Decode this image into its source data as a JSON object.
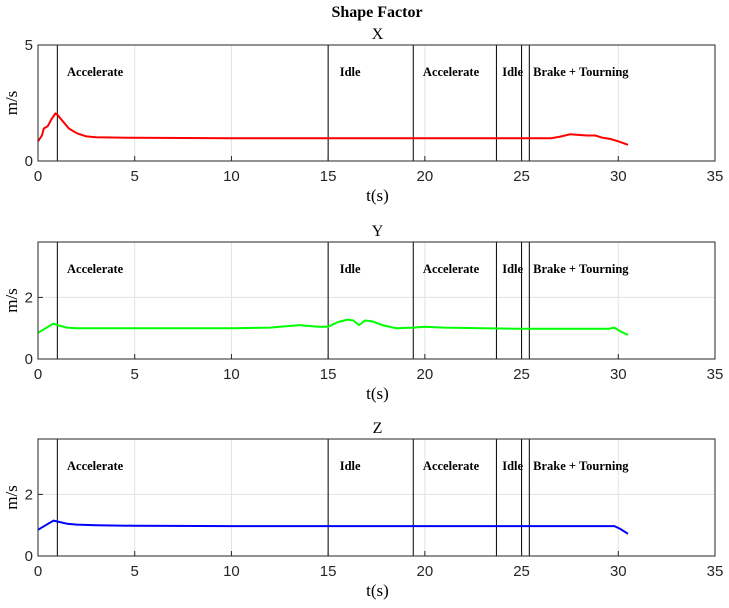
{
  "figure_title": "Shape Factor",
  "chart_data": [
    {
      "type": "line",
      "title": "X",
      "xlabel": "t(s)",
      "ylabel": "m/s",
      "xlim": [
        0,
        35
      ],
      "ylim": [
        0,
        5
      ],
      "xticks": [
        0,
        5,
        10,
        15,
        20,
        25,
        30,
        35
      ],
      "yticks": [
        0,
        5
      ],
      "grid": true,
      "series": [
        {
          "color": "#ff0000",
          "x": [
            0,
            0.2,
            0.3,
            0.5,
            0.7,
            0.9,
            1.0,
            1.3,
            1.6,
            2.0,
            2.5,
            3.0,
            5,
            10,
            15,
            20,
            25,
            26.5,
            27.0,
            27.5,
            28.0,
            28.4,
            28.8,
            29.2,
            29.6,
            30.0,
            30.5
          ],
          "y": [
            0.85,
            1.1,
            1.4,
            1.5,
            1.8,
            2.05,
            2.0,
            1.7,
            1.4,
            1.2,
            1.06,
            1.02,
            1.0,
            0.98,
            0.98,
            0.98,
            0.98,
            0.98,
            1.05,
            1.15,
            1.12,
            1.1,
            1.1,
            1.0,
            0.95,
            0.85,
            0.7
          ]
        }
      ],
      "phase_lines": [
        1.0,
        15.0,
        19.4,
        23.7,
        25.0,
        25.4
      ],
      "annotations": [
        {
          "text": "Accelerate",
          "x": 1.5
        },
        {
          "text": "Idle",
          "x": 15.6
        },
        {
          "text": "Accelerate",
          "x": 19.9
        },
        {
          "text": "Idle",
          "x": 24.0
        },
        {
          "text": "Brake + Tourning",
          "x": 25.6
        }
      ]
    },
    {
      "type": "line",
      "title": "Y",
      "xlabel": "t(s)",
      "ylabel": "m/s",
      "xlim": [
        0,
        35
      ],
      "ylim": [
        0,
        3.8
      ],
      "xticks": [
        0,
        5,
        10,
        15,
        20,
        25,
        30,
        35
      ],
      "yticks": [
        0,
        2
      ],
      "grid": true,
      "series": [
        {
          "color": "#00ff00",
          "x": [
            0,
            0.4,
            0.8,
            1.0,
            1.5,
            2.0,
            3.0,
            5,
            8,
            10,
            12,
            13.5,
            14.5,
            15.0,
            15.5,
            16.0,
            16.3,
            16.6,
            16.9,
            17.3,
            17.8,
            18.5,
            19.4,
            20.0,
            21,
            23,
            25,
            27,
            29.5,
            29.8,
            30.1,
            30.5
          ],
          "y": [
            0.85,
            1.0,
            1.15,
            1.1,
            1.02,
            1.0,
            1.0,
            1.0,
            1.0,
            1.0,
            1.02,
            1.1,
            1.05,
            1.05,
            1.2,
            1.28,
            1.25,
            1.1,
            1.25,
            1.22,
            1.1,
            1.0,
            1.02,
            1.05,
            1.02,
            1.0,
            0.98,
            0.98,
            0.98,
            1.02,
            0.9,
            0.78
          ]
        }
      ],
      "phase_lines": [
        1.0,
        15.0,
        19.4,
        23.7,
        25.0,
        25.4
      ],
      "annotations": [
        {
          "text": "Accelerate",
          "x": 1.5
        },
        {
          "text": "Idle",
          "x": 15.6
        },
        {
          "text": "Accelerate",
          "x": 19.9
        },
        {
          "text": "Idle",
          "x": 24.0
        },
        {
          "text": "Brake + Tourning",
          "x": 25.6
        }
      ]
    },
    {
      "type": "line",
      "title": "Z",
      "xlabel": "t(s)",
      "ylabel": "m/s",
      "xlim": [
        0,
        35
      ],
      "ylim": [
        0,
        3.8
      ],
      "xticks": [
        0,
        5,
        10,
        15,
        20,
        25,
        30,
        35
      ],
      "yticks": [
        0,
        2
      ],
      "grid": true,
      "series": [
        {
          "color": "#0000ff",
          "x": [
            0,
            0.4,
            0.8,
            1.0,
            1.5,
            2.0,
            3.0,
            5,
            10,
            15,
            20,
            25,
            29.0,
            29.8,
            30.1,
            30.5
          ],
          "y": [
            0.85,
            1.0,
            1.15,
            1.12,
            1.05,
            1.02,
            1.0,
            0.98,
            0.97,
            0.97,
            0.97,
            0.97,
            0.97,
            0.97,
            0.88,
            0.72
          ]
        }
      ],
      "phase_lines": [
        1.0,
        15.0,
        19.4,
        23.7,
        25.0,
        25.4
      ],
      "annotations": [
        {
          "text": "Accelerate",
          "x": 1.5
        },
        {
          "text": "Idle",
          "x": 15.6
        },
        {
          "text": "Accelerate",
          "x": 19.9
        },
        {
          "text": "Idle",
          "x": 24.0
        },
        {
          "text": "Brake + Tourning",
          "x": 25.6
        }
      ]
    }
  ]
}
